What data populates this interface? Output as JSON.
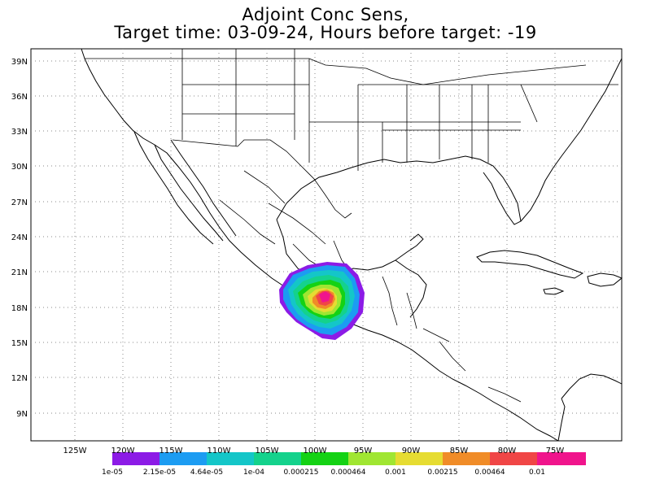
{
  "title": {
    "line1": "Adjoint Conc Sens,",
    "line2": "Target time: 03-09-24, Hours before target: -19"
  },
  "map": {
    "lat_labels": [
      "39N",
      "36N",
      "33N",
      "30N",
      "27N",
      "24N",
      "21N",
      "18N",
      "15N",
      "12N",
      "9N"
    ],
    "lon_labels": [
      "125W",
      "120W",
      "115W",
      "110W",
      "105W",
      "100W",
      "95W",
      "90W",
      "85W",
      "80W",
      "75W"
    ],
    "extent": {
      "lon": [
        -129,
        -67
      ],
      "lat": [
        6.5,
        40.5
      ]
    },
    "sensitivity_center": {
      "lon": "100W",
      "lat": "19N"
    }
  },
  "colorbar": {
    "colors": [
      "#8c1be6",
      "#1c9cf2",
      "#14c6c8",
      "#14d28c",
      "#14d214",
      "#a0e632",
      "#e6dc32",
      "#f08c28",
      "#f04646",
      "#f0148c"
    ],
    "labels": [
      "1e-05",
      "2.15e-05",
      "4.64e-05",
      "1e-04",
      "0.000215",
      "0.000464",
      "0.001",
      "0.00215",
      "0.00464",
      "0.01"
    ]
  }
}
